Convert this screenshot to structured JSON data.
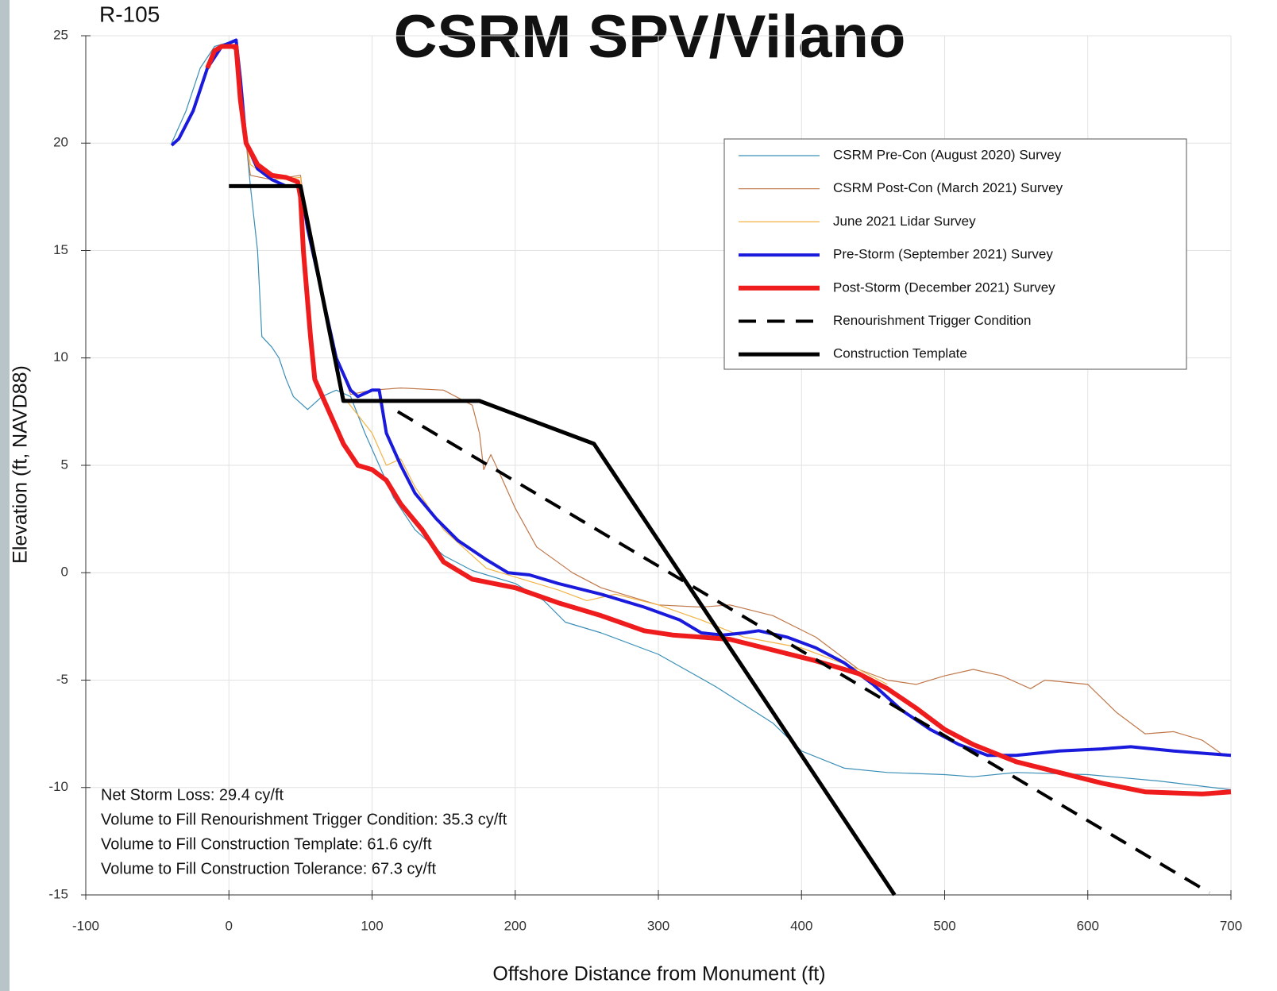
{
  "chart_data": {
    "type": "line",
    "title": "CSRM SPV/Vilano",
    "subtitle": "R-105",
    "x_label": "Offshore Distance from Monument (ft)",
    "y_label": "Elevation (ft, NAVD88)",
    "xlim": [
      -100,
      700
    ],
    "ylim": [
      -15,
      25
    ],
    "xticks": [
      -100,
      0,
      100,
      200,
      300,
      400,
      500,
      600,
      700
    ],
    "yticks": [
      -15,
      -10,
      -5,
      0,
      5,
      10,
      15,
      20,
      25
    ],
    "grid": true,
    "legend": "upper right",
    "annotations": [
      "Net Storm Loss: 29.4 cy/ft",
      "Volume to Fill Renourishment Trigger Condition: 35.3 cy/ft",
      "Volume to Fill Construction Template: 61.6 cy/ft",
      "Volume to Fill Construction Tolerance: 67.3 cy/ft"
    ],
    "series": [
      {
        "name": "CSRM Pre-Con (August 2020) Survey",
        "color": "#3a8fb7",
        "width": 1.2,
        "dash": false,
        "x": [
          -40,
          -30,
          -20,
          -10,
          0,
          5,
          10,
          15,
          20,
          23,
          30,
          35,
          40,
          45,
          55,
          65,
          75,
          85,
          95,
          105,
          115,
          130,
          150,
          170,
          200,
          220,
          235,
          260,
          300,
          340,
          380,
          400,
          430,
          460,
          500,
          520,
          550,
          600,
          650,
          700
        ],
        "values": [
          20,
          21.5,
          23.5,
          24.5,
          24.7,
          24.7,
          21.5,
          18,
          15,
          11,
          10.5,
          10,
          9,
          8.2,
          7.6,
          8.2,
          8.5,
          8.2,
          6.5,
          5,
          3.5,
          2,
          0.8,
          0.1,
          -0.5,
          -1.3,
          -2.3,
          -2.8,
          -3.8,
          -5.3,
          -7,
          -8.3,
          -9.1,
          -9.3,
          -9.4,
          -9.5,
          -9.3,
          -9.4,
          -9.7,
          -10.1
        ]
      },
      {
        "name": "CSRM Post-Con (March 2021) Survey",
        "color": "#c0784a",
        "width": 1.2,
        "dash": false,
        "x": [
          0,
          5,
          10,
          15,
          30,
          50,
          55,
          65,
          75,
          85,
          100,
          120,
          150,
          170,
          175,
          178,
          183,
          190,
          200,
          215,
          240,
          260,
          300,
          330,
          350,
          380,
          410,
          440,
          460,
          480,
          500,
          520,
          540,
          560,
          570,
          600,
          620,
          640,
          660,
          680,
          695
        ],
        "values": [
          24.5,
          24.3,
          21,
          18.5,
          18.3,
          18.5,
          16,
          13,
          10,
          8.3,
          8.5,
          8.6,
          8.5,
          7.8,
          6.5,
          4.8,
          5.5,
          4.5,
          3,
          1.2,
          0,
          -0.7,
          -1.5,
          -1.6,
          -1.5,
          -2,
          -3,
          -4.5,
          -5,
          -5.2,
          -4.8,
          -4.5,
          -4.8,
          -5.4,
          -5,
          -5.2,
          -6.5,
          -7.5,
          -7.4,
          -7.8,
          -8.5
        ]
      },
      {
        "name": "June 2021 Lidar Survey",
        "color": "#f2b344",
        "width": 1.2,
        "dash": false,
        "x": [
          -15,
          -5,
          5,
          10,
          15,
          30,
          50,
          55,
          70,
          80,
          100,
          110,
          120,
          130,
          150,
          180,
          200,
          230,
          250,
          270,
          300,
          330,
          360,
          400,
          440,
          460
        ],
        "values": [
          23.5,
          24.5,
          24.5,
          21,
          19,
          18.3,
          18.4,
          16,
          11,
          8.2,
          6.5,
          5,
          5.3,
          4,
          2,
          0.2,
          -0.2,
          -0.8,
          -1.3,
          -1,
          -1.5,
          -2.2,
          -3,
          -3.5,
          -4.5,
          -5.2
        ]
      },
      {
        "name": "Pre-Storm (September 2021) Survey",
        "color": "#1a1adc",
        "width": 4,
        "dash": false,
        "x": [
          -40,
          -35,
          -25,
          -15,
          -5,
          5,
          8,
          12,
          20,
          30,
          40,
          50,
          55,
          65,
          75,
          85,
          90,
          100,
          105,
          110,
          120,
          130,
          145,
          160,
          180,
          195,
          210,
          230,
          260,
          290,
          315,
          330,
          345,
          360,
          370,
          390,
          410,
          430,
          450,
          470,
          490,
          510,
          530,
          550,
          580,
          610,
          630,
          660,
          700
        ],
        "values": [
          19.9,
          20.2,
          21.5,
          23.5,
          24.5,
          24.8,
          23,
          20,
          18.8,
          18.3,
          18,
          18,
          16,
          13,
          10,
          8.5,
          8.2,
          8.5,
          8.5,
          6.5,
          5,
          3.7,
          2.5,
          1.5,
          0.6,
          0,
          -0.1,
          -0.5,
          -1,
          -1.6,
          -2.2,
          -2.8,
          -2.9,
          -2.8,
          -2.7,
          -3,
          -3.5,
          -4.2,
          -5.2,
          -6.4,
          -7.3,
          -8,
          -8.5,
          -8.5,
          -8.3,
          -8.2,
          -8.1,
          -8.3,
          -8.5
        ]
      },
      {
        "name": "Post-Storm (December 2021) Survey",
        "color": "#ee1c1c",
        "width": 6,
        "dash": false,
        "x": [
          -15,
          -10,
          -5,
          5,
          8,
          12,
          20,
          30,
          40,
          48,
          50,
          52,
          57,
          60,
          70,
          80,
          90,
          100,
          110,
          120,
          135,
          150,
          170,
          200,
          230,
          260,
          290,
          310,
          350,
          380,
          410,
          440,
          460,
          480,
          500,
          520,
          550,
          580,
          610,
          640,
          680,
          700
        ],
        "values": [
          23.5,
          24.3,
          24.5,
          24.5,
          22,
          20,
          19,
          18.5,
          18.4,
          18.2,
          17.5,
          15,
          11,
          9,
          7.5,
          6,
          5,
          4.8,
          4.3,
          3.2,
          2,
          0.5,
          -0.3,
          -0.7,
          -1.4,
          -2,
          -2.7,
          -2.9,
          -3.1,
          -3.6,
          -4.1,
          -4.7,
          -5.4,
          -6.3,
          -7.3,
          -8,
          -8.8,
          -9.3,
          -9.8,
          -10.2,
          -10.3,
          -10.2
        ]
      },
      {
        "name": "Renourishment Trigger Condition",
        "color": "#000000",
        "width": 4,
        "dash": true,
        "x": [
          118,
          685
        ],
        "values": [
          7.5,
          -14.9
        ]
      },
      {
        "name": "Construction Template",
        "color": "#000000",
        "width": 5,
        "dash": false,
        "x": [
          0,
          50,
          80,
          175,
          255,
          465
        ],
        "values": [
          18,
          18,
          8,
          8,
          6,
          -15
        ]
      }
    ]
  }
}
